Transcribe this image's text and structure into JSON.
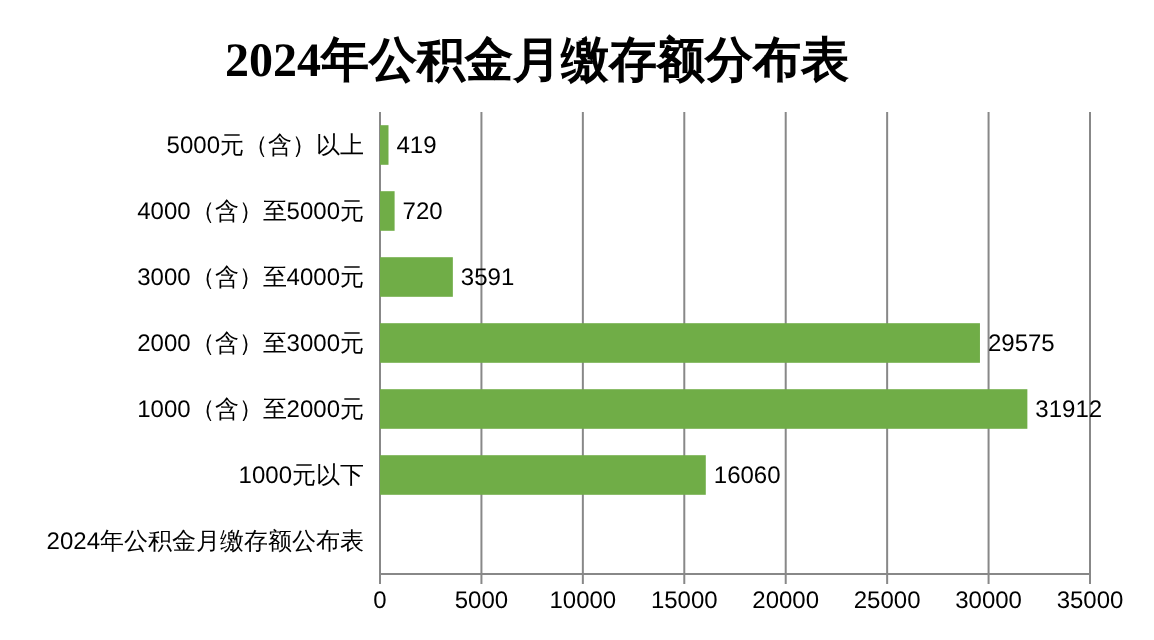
{
  "chart_data": {
    "type": "bar",
    "orientation": "horizontal",
    "title": "2024年公积金月缴存额分布表",
    "categories": [
      "5000元（含）以上",
      "4000（含）至5000元",
      "3000（含）至4000元",
      "2000（含）至3000元",
      "1000（含）至2000元",
      "1000元以下",
      "2024年公积金月缴存额公布表"
    ],
    "values": [
      419,
      720,
      3591,
      29575,
      31912,
      16060,
      null
    ],
    "color": "#70ad47",
    "xlim": [
      0,
      35000
    ],
    "xticks": [
      0,
      5000,
      10000,
      15000,
      20000,
      25000,
      30000,
      35000
    ],
    "grid": "x",
    "data_labels": true
  }
}
